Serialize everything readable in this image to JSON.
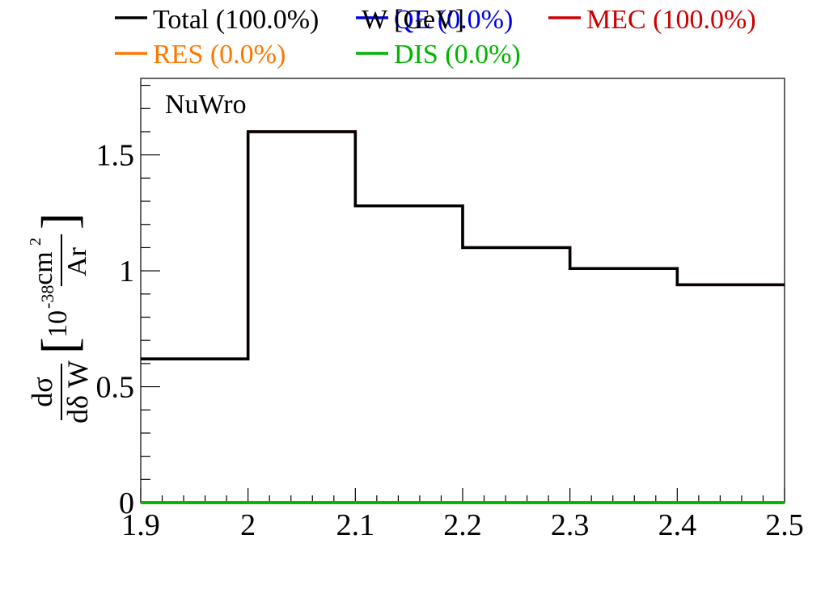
{
  "chart_data": {
    "type": "step",
    "title": "",
    "xlabel": "W [GeV]",
    "ylabel": {
      "numerator": "dσ",
      "denominator": "dδ W",
      "unit_scale": "10",
      "unit_exponent": "-38",
      "unit_top": "cm",
      "unit_top_exponent": "2",
      "unit_bottom": "Ar"
    },
    "annotation": "NuWro",
    "xlim": [
      1.9,
      2.5
    ],
    "ylim": [
      0,
      1.83
    ],
    "x_ticks": [
      "1.9",
      "2",
      "2.1",
      "2.2",
      "2.3",
      "2.4",
      "2.5"
    ],
    "y_ticks": [
      "0",
      "0.5",
      "1",
      "1.5"
    ],
    "bin_edges": [
      1.9,
      2.0,
      2.1,
      2.2,
      2.3,
      2.4,
      2.5
    ],
    "series": [
      {
        "name": "Total",
        "label": "Total (100.0%)",
        "color": "#000000",
        "values": [
          0.62,
          1.6,
          1.28,
          1.1,
          1.01,
          0.94
        ]
      },
      {
        "name": "QE",
        "label": "QE (0.0%)",
        "color": "#0000e6",
        "values": [
          0,
          0,
          0,
          0,
          0,
          0
        ]
      },
      {
        "name": "MEC",
        "label": "MEC (100.0%)",
        "color": "#cc0000",
        "values": [
          0.62,
          1.6,
          1.28,
          1.1,
          1.01,
          0.94
        ]
      },
      {
        "name": "RES",
        "label": "RES (0.0%)",
        "color": "#ff7700",
        "values": [
          0,
          0,
          0,
          0,
          0,
          0
        ]
      },
      {
        "name": "DIS",
        "label": "DIS (0.0%)",
        "color": "#00b400",
        "values": [
          0,
          0,
          0,
          0,
          0,
          0
        ]
      }
    ]
  }
}
